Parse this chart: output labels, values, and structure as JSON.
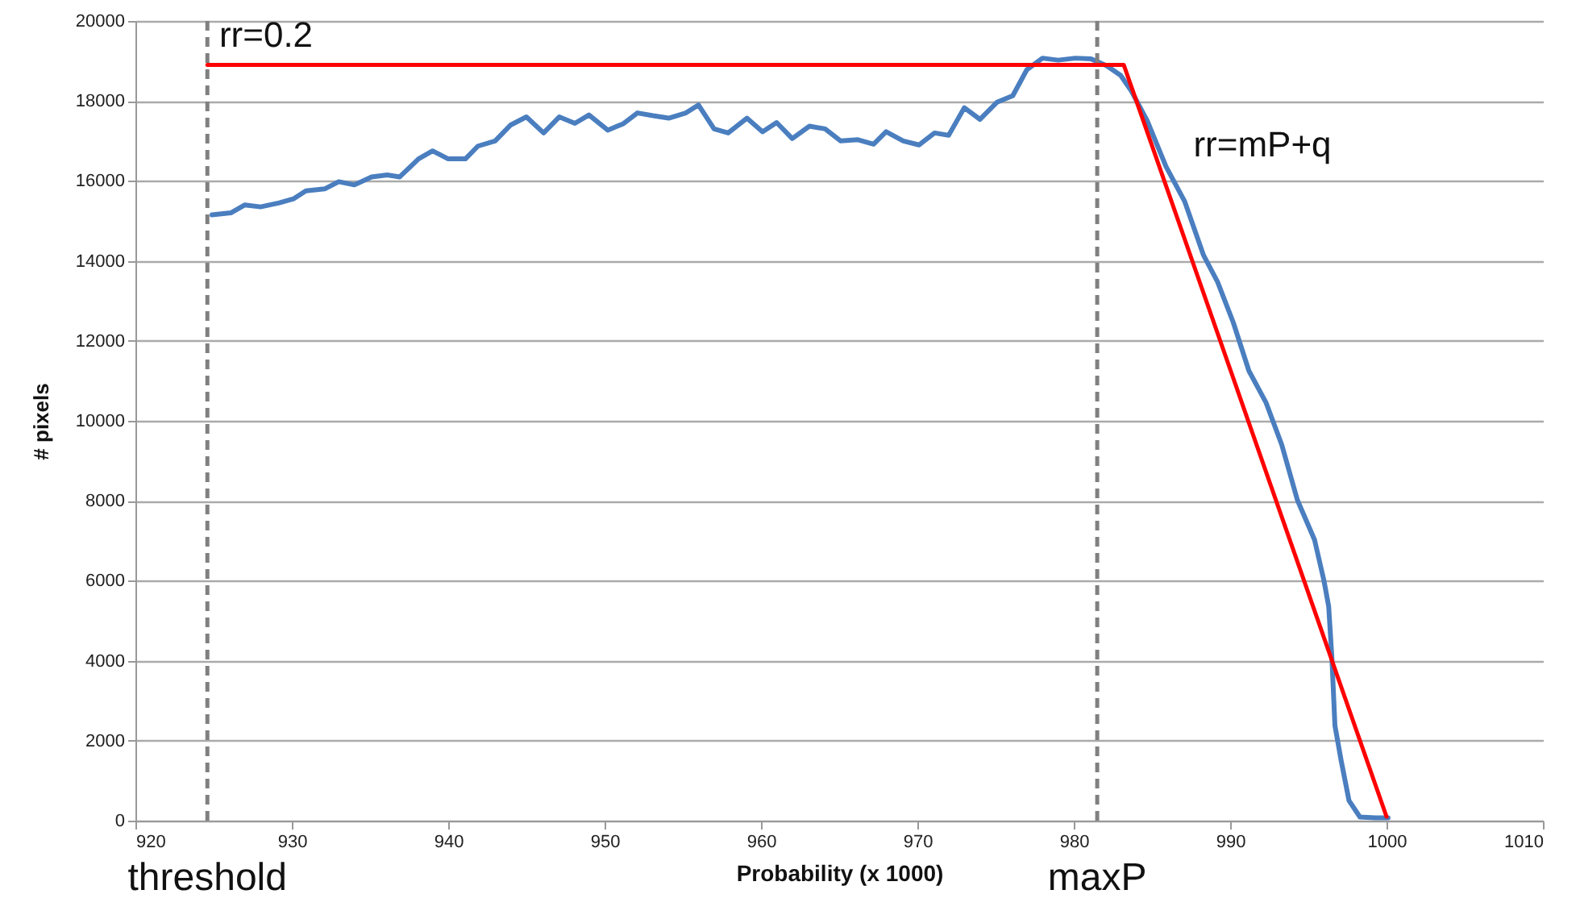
{
  "chart_data": {
    "type": "line",
    "xlabel": "Probability (x 1000)",
    "ylabel": "# pixels",
    "xlim": [
      920,
      1010
    ],
    "xticks": [
      920,
      930,
      940,
      950,
      960,
      970,
      980,
      990,
      1000,
      1010
    ],
    "ylim": [
      0,
      20000
    ],
    "yticks": [
      0,
      2000,
      4000,
      6000,
      8000,
      10000,
      12000,
      14000,
      16000,
      18000,
      20000
    ],
    "grid": "y",
    "series": [
      {
        "color": "#4a7ebf",
        "x": [
          924.9,
          926.1,
          927.0,
          928.0,
          929.2,
          930.1,
          930.9,
          932.1,
          933.0,
          934.0,
          935.1,
          936.1,
          936.9,
          938.1,
          939.0,
          940.0,
          941.1,
          941.9,
          943.0,
          944.0,
          945.0,
          946.1,
          947.1,
          948.1,
          949.0,
          950.2,
          951.2,
          952.1,
          953.1,
          954.1,
          955.2,
          956.0,
          957.0,
          957.9,
          959.1,
          960.1,
          961.0,
          962.0,
          963.1,
          964.1,
          965.1,
          966.2,
          967.2,
          968.0,
          969.1,
          970.1,
          971.1,
          972.0,
          973.0,
          974.0,
          975.1,
          976.1,
          977.0,
          978.0,
          979.0,
          980.1,
          981.1,
          982.1,
          983.0,
          983.7,
          984.7,
          985.9,
          987.1,
          988.3,
          989.2,
          990.2,
          991.2,
          992.3,
          993.3,
          994.3,
          995.4,
          996.0,
          996.3,
          996.5,
          996.7,
          997.1,
          997.6,
          998.3,
          999.3,
          1000.1
        ],
        "values": [
          15150,
          15200,
          15400,
          15350,
          15450,
          15550,
          15750,
          15800,
          15980,
          15900,
          16100,
          16150,
          16100,
          16550,
          16750,
          16550,
          16550,
          16870,
          17000,
          17400,
          17600,
          17200,
          17600,
          17440,
          17650,
          17270,
          17430,
          17700,
          17630,
          17570,
          17700,
          17900,
          17300,
          17200,
          17570,
          17230,
          17460,
          17060,
          17370,
          17300,
          17000,
          17030,
          16920,
          17230,
          17000,
          16900,
          17200,
          17140,
          17830,
          17540,
          17970,
          18130,
          18780,
          19070,
          19020,
          19070,
          19050,
          18880,
          18640,
          18240,
          17500,
          16360,
          15480,
          14140,
          13470,
          12460,
          11250,
          10450,
          9400,
          8020,
          7020,
          6000,
          5360,
          4120,
          2380,
          1500,
          500,
          90,
          70,
          70
        ]
      },
      {
        "color": "#ff0000",
        "x": [
          924.6,
          983.2,
          1000
        ],
        "values": [
          18900,
          18900,
          100
        ]
      }
    ],
    "ref_lines": [
      {
        "axis": "x",
        "value": 924.6,
        "label": "threshold",
        "color": "#808080",
        "line_style": "dashed"
      },
      {
        "axis": "x",
        "value": 981.5,
        "label": "maxP",
        "color": "#808080",
        "line_style": "dashed"
      }
    ],
    "annotations": [
      "rr=0.2",
      "rr=mP+q"
    ]
  }
}
